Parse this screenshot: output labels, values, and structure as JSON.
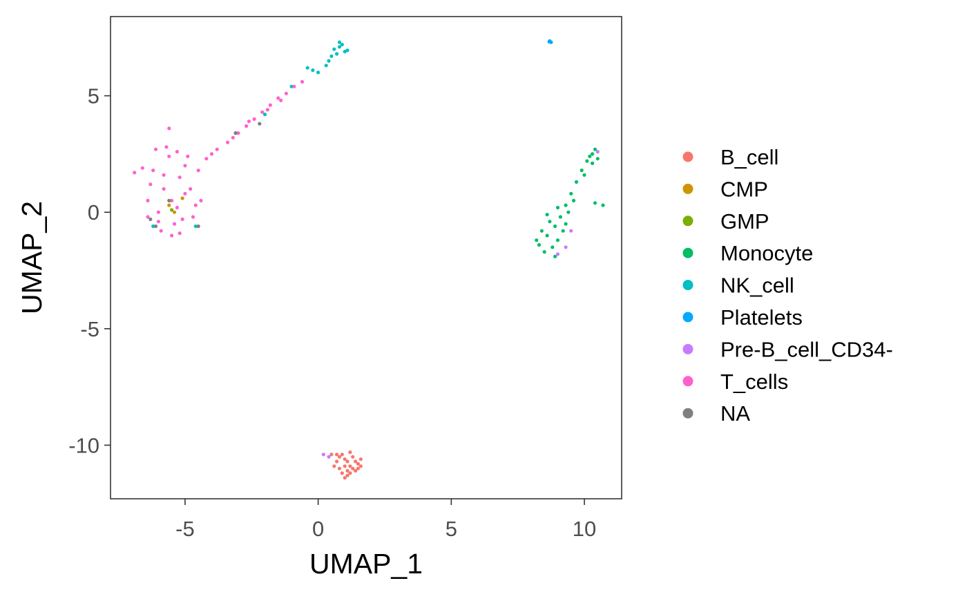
{
  "chart_data": {
    "type": "scatter",
    "xlabel": "UMAP_1",
    "ylabel": "UMAP_2",
    "xlim": [
      -7.8,
      11.4
    ],
    "ylim": [
      -12.3,
      8.4
    ],
    "xticks": [
      -5,
      0,
      5,
      10
    ],
    "xtick_labels": [
      "-5",
      "0",
      "5",
      "10"
    ],
    "yticks": [
      5,
      0,
      -5,
      -10
    ],
    "ytick_labels": [
      "5",
      "0",
      "-5",
      "-10"
    ],
    "grid": false,
    "legend_position": "right",
    "series": [
      {
        "name": "B_cell",
        "color": "#F8766D",
        "points": [
          [
            1.0,
            -10.6
          ],
          [
            1.2,
            -10.9
          ],
          [
            0.8,
            -11.0
          ],
          [
            1.5,
            -10.8
          ],
          [
            1.1,
            -11.3
          ],
          [
            0.9,
            -10.4
          ],
          [
            1.3,
            -10.5
          ],
          [
            0.7,
            -10.7
          ],
          [
            1.4,
            -11.1
          ],
          [
            1.0,
            -11.4
          ],
          [
            1.6,
            -10.6
          ],
          [
            0.6,
            -10.9
          ],
          [
            1.2,
            -10.3
          ],
          [
            0.9,
            -11.2
          ],
          [
            1.3,
            -11.0
          ],
          [
            0.8,
            -10.5
          ],
          [
            1.1,
            -10.7
          ],
          [
            1.5,
            -11.0
          ],
          [
            1.0,
            -10.9
          ],
          [
            1.2,
            -11.2
          ],
          [
            0.7,
            -10.4
          ],
          [
            1.4,
            -10.7
          ],
          [
            0.5,
            -10.4
          ],
          [
            1.6,
            -10.9
          ],
          [
            1.1,
            -11.1
          ]
        ]
      },
      {
        "name": "CMP",
        "color": "#CD9600",
        "points": [
          [
            -5.4,
            0.0
          ],
          [
            -5.6,
            0.3
          ],
          [
            -5.1,
            0.6
          ]
        ]
      },
      {
        "name": "GMP",
        "color": "#7CAE00",
        "points": [
          [
            -5.5,
            0.1
          ]
        ]
      },
      {
        "name": "Monocyte",
        "color": "#00BE67",
        "points": [
          [
            8.3,
            -1.4
          ],
          [
            8.6,
            -1.0
          ],
          [
            8.9,
            -0.6
          ],
          [
            9.1,
            -0.2
          ],
          [
            9.3,
            0.3
          ],
          [
            9.5,
            0.8
          ],
          [
            9.7,
            1.3
          ],
          [
            9.9,
            1.8
          ],
          [
            10.1,
            2.2
          ],
          [
            10.3,
            2.5
          ],
          [
            10.4,
            2.7
          ],
          [
            10.2,
            2.4
          ],
          [
            8.5,
            -1.7
          ],
          [
            8.8,
            -1.5
          ],
          [
            9.0,
            -1.2
          ],
          [
            8.7,
            -0.4
          ],
          [
            9.2,
            -0.8
          ],
          [
            8.4,
            -0.8
          ],
          [
            9.4,
            0.0
          ],
          [
            9.6,
            0.5
          ],
          [
            10.5,
            2.3
          ],
          [
            10.0,
            1.6
          ],
          [
            8.2,
            -1.2
          ],
          [
            9.0,
            0.2
          ],
          [
            10.4,
            0.4
          ],
          [
            10.7,
            0.3
          ],
          [
            8.9,
            -1.9
          ],
          [
            9.3,
            -0.5
          ],
          [
            8.6,
            -0.1
          ],
          [
            10.3,
            2.1
          ]
        ]
      },
      {
        "name": "NK_cell",
        "color": "#00BFC4",
        "points": [
          [
            0.6,
            7.0
          ],
          [
            0.8,
            7.1
          ],
          [
            1.0,
            6.9
          ],
          [
            0.7,
            6.8
          ],
          [
            0.9,
            7.2
          ],
          [
            1.1,
            6.95
          ],
          [
            0.5,
            6.7
          ],
          [
            0.4,
            6.5
          ],
          [
            0.3,
            6.3
          ],
          [
            0.8,
            7.3
          ],
          [
            -0.2,
            6.1
          ],
          [
            0.0,
            6.0
          ],
          [
            -0.4,
            6.2
          ],
          [
            -1.0,
            5.4
          ],
          [
            -2.0,
            4.2
          ],
          [
            -3.1,
            3.4
          ],
          [
            -6.2,
            -0.6
          ],
          [
            -4.6,
            -0.6
          ]
        ]
      },
      {
        "name": "Platelets",
        "color": "#00A9FF",
        "points": [
          [
            8.7,
            7.35
          ],
          [
            8.75,
            7.3
          ],
          [
            8.68,
            7.32
          ]
        ]
      },
      {
        "name": "Pre-B_cell_CD34-",
        "color": "#C77CFF",
        "points": [
          [
            9.0,
            -1.8
          ],
          [
            9.3,
            -1.5
          ],
          [
            9.5,
            -0.8
          ],
          [
            10.5,
            2.6
          ],
          [
            0.2,
            -10.4
          ],
          [
            0.4,
            -10.5
          ]
        ]
      },
      {
        "name": "T_cells",
        "color": "#FF61CC",
        "points": [
          [
            -5.5,
            0.5
          ],
          [
            -5.8,
            1.0
          ],
          [
            -5.2,
            1.5
          ],
          [
            -6.0,
            0.0
          ],
          [
            -5.4,
            -0.5
          ],
          [
            -5.0,
            2.0
          ],
          [
            -6.2,
            1.8
          ],
          [
            -5.6,
            2.4
          ],
          [
            -4.8,
            1.0
          ],
          [
            -6.4,
            0.5
          ],
          [
            -5.9,
            -0.8
          ],
          [
            -5.1,
            -0.3
          ],
          [
            -4.6,
            0.3
          ],
          [
            -6.3,
            1.2
          ],
          [
            -5.7,
            2.8
          ],
          [
            -5.3,
            2.6
          ],
          [
            -4.5,
            1.8
          ],
          [
            -6.6,
            1.9
          ],
          [
            -6.1,
            2.7
          ],
          [
            -5.0,
            0.8
          ],
          [
            -4.7,
            -0.2
          ],
          [
            -5.5,
            -1.0
          ],
          [
            -6.0,
            -0.4
          ],
          [
            -5.8,
            1.6
          ],
          [
            -5.3,
            0.2
          ],
          [
            -4.9,
            2.4
          ],
          [
            -6.4,
            -0.2
          ],
          [
            -5.6,
            3.6
          ],
          [
            -4.2,
            2.3
          ],
          [
            -3.8,
            2.7
          ],
          [
            -3.4,
            3.0
          ],
          [
            -3.0,
            3.4
          ],
          [
            -2.7,
            3.7
          ],
          [
            -2.4,
            4.0
          ],
          [
            -2.1,
            4.3
          ],
          [
            -1.8,
            4.6
          ],
          [
            -1.5,
            4.9
          ],
          [
            -1.2,
            5.1
          ],
          [
            -0.9,
            5.4
          ],
          [
            -0.6,
            5.6
          ],
          [
            -4.0,
            2.5
          ],
          [
            -3.2,
            3.2
          ],
          [
            -2.6,
            3.9
          ],
          [
            -1.9,
            4.4
          ],
          [
            -1.4,
            4.8
          ],
          [
            -6.9,
            1.7
          ],
          [
            -4.4,
            0.5
          ],
          [
            -5.2,
            -0.9
          ]
        ]
      },
      {
        "name": "NA",
        "color": "#7F7F7F",
        "points": [
          [
            -6.1,
            -0.6
          ],
          [
            -4.5,
            -0.6
          ],
          [
            -3.1,
            3.4
          ],
          [
            -2.2,
            3.8
          ],
          [
            -5.6,
            0.5
          ],
          [
            -6.3,
            -0.3
          ]
        ]
      }
    ]
  }
}
